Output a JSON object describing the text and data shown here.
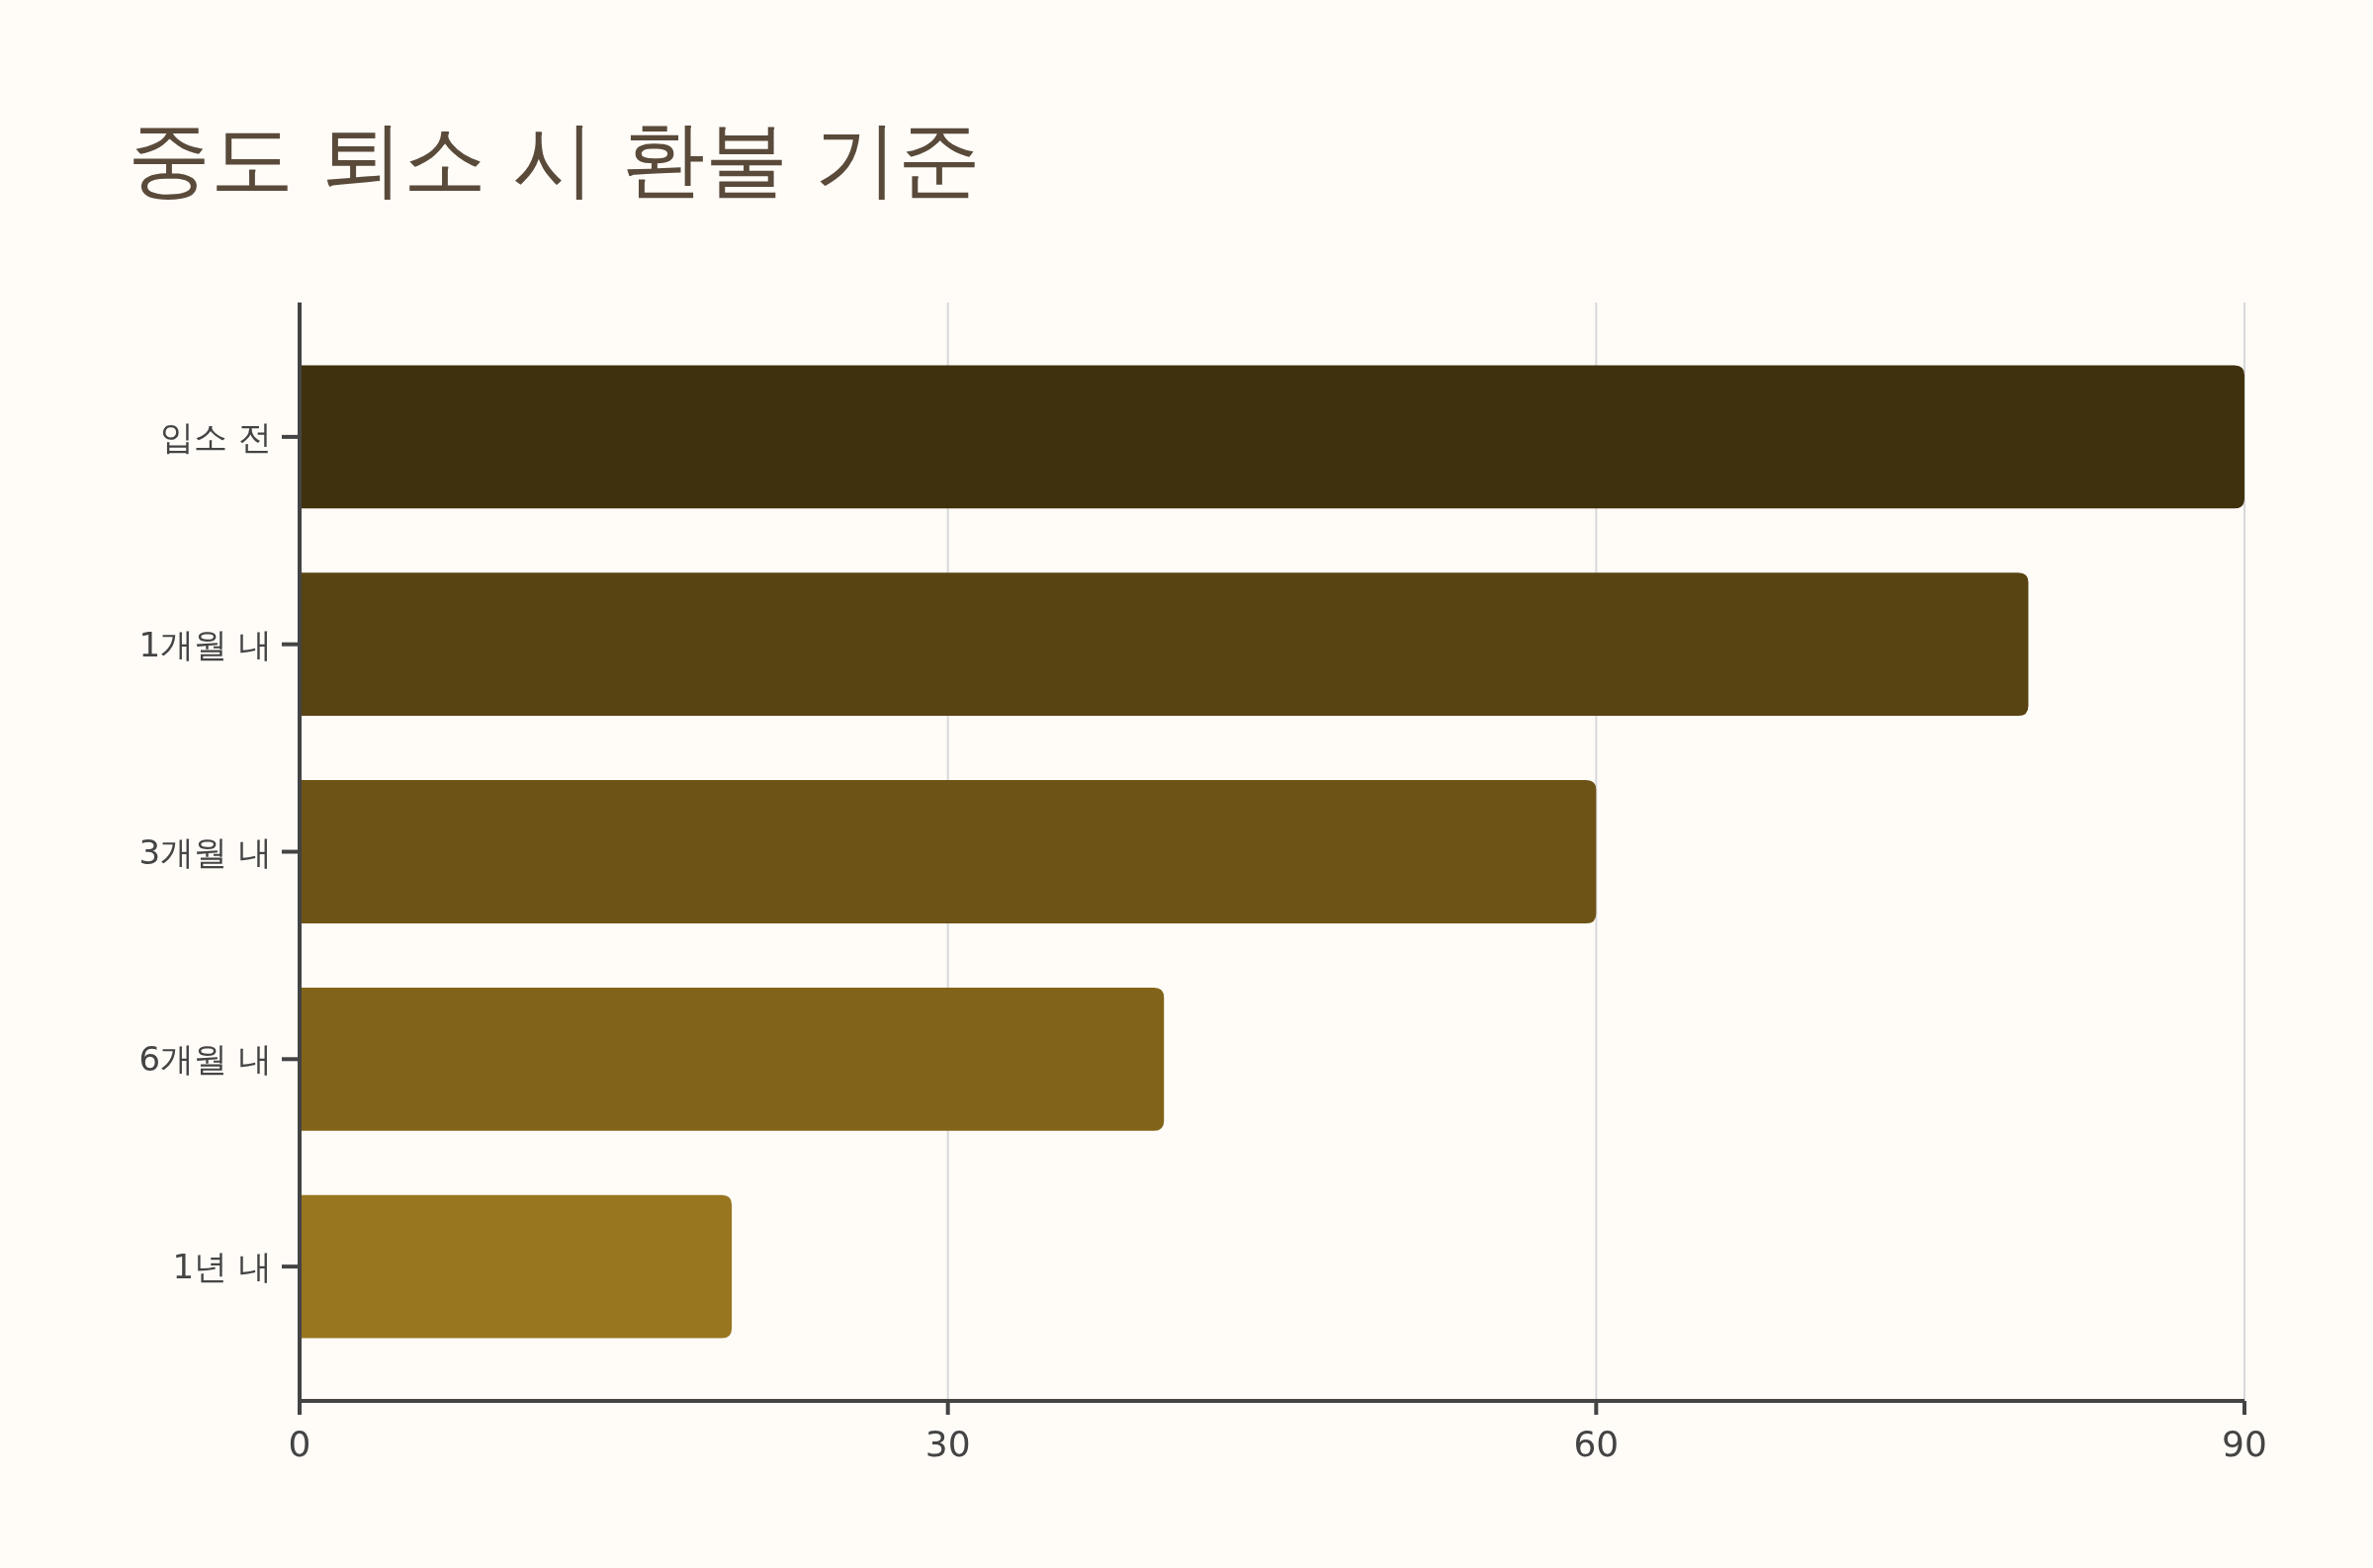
{
  "chart_data": {
    "type": "bar",
    "orientation": "horizontal",
    "title": "중도 퇴소 시 환불 기준",
    "categories": [
      "입소 전",
      "1개월 내",
      "3개월 내",
      "6개월 내",
      "1년 내"
    ],
    "values": [
      90,
      80,
      60,
      40,
      20
    ],
    "colors": [
      "#40310e",
      "#584312",
      "#6d5316",
      "#816419",
      "#987620"
    ],
    "xlim": [
      0,
      90
    ],
    "xticks": [
      0,
      30,
      60,
      90
    ],
    "grid": "x"
  }
}
